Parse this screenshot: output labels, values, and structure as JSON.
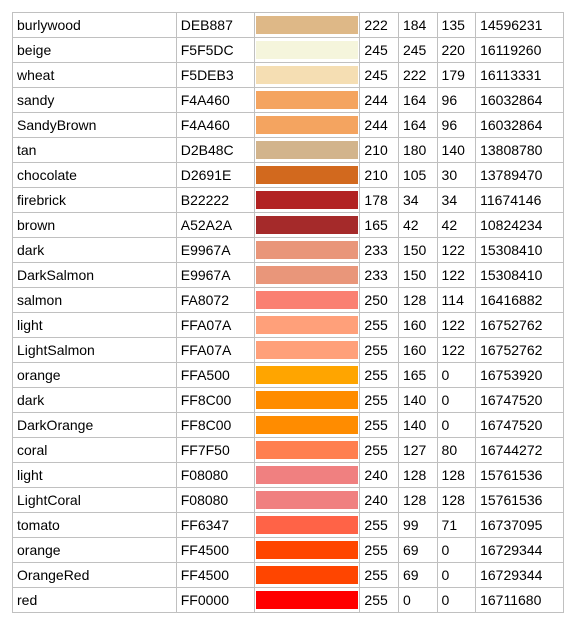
{
  "table": {
    "border_color": "#c0c0c0",
    "background_color": "#ffffff",
    "font_size": 14,
    "rows": [
      {
        "name": "burlywood",
        "hex": "DEB887",
        "color": "#DEB887",
        "r": 222,
        "g": 184,
        "b": 135,
        "dec": 14596231
      },
      {
        "name": "beige",
        "hex": "F5F5DC",
        "color": "#F5F5DC",
        "r": 245,
        "g": 245,
        "b": 220,
        "dec": 16119260
      },
      {
        "name": "wheat",
        "hex": "F5DEB3",
        "color": "#F5DEB3",
        "r": 245,
        "g": 222,
        "b": 179,
        "dec": 16113331
      },
      {
        "name": "sandy",
        "hex": "F4A460",
        "color": "#F4A460",
        "r": 244,
        "g": 164,
        "b": 96,
        "dec": 16032864
      },
      {
        "name": "SandyBrown",
        "hex": "F4A460",
        "color": "#F4A460",
        "r": 244,
        "g": 164,
        "b": 96,
        "dec": 16032864
      },
      {
        "name": "tan",
        "hex": "D2B48C",
        "color": "#D2B48C",
        "r": 210,
        "g": 180,
        "b": 140,
        "dec": 13808780
      },
      {
        "name": "chocolate",
        "hex": "D2691E",
        "color": "#D2691E",
        "r": 210,
        "g": 105,
        "b": 30,
        "dec": 13789470
      },
      {
        "name": "firebrick",
        "hex": "B22222",
        "color": "#B22222",
        "r": 178,
        "g": 34,
        "b": 34,
        "dec": 11674146
      },
      {
        "name": "brown",
        "hex": "A52A2A",
        "color": "#A52A2A",
        "r": 165,
        "g": 42,
        "b": 42,
        "dec": 10824234
      },
      {
        "name": "dark",
        "hex": "E9967A",
        "color": "#E9967A",
        "r": 233,
        "g": 150,
        "b": 122,
        "dec": 15308410
      },
      {
        "name": "DarkSalmon",
        "hex": "E9967A",
        "color": "#E9967A",
        "r": 233,
        "g": 150,
        "b": 122,
        "dec": 15308410
      },
      {
        "name": "salmon",
        "hex": "FA8072",
        "color": "#FA8072",
        "r": 250,
        "g": 128,
        "b": 114,
        "dec": 16416882
      },
      {
        "name": "light",
        "hex": "FFA07A",
        "color": "#FFA07A",
        "r": 255,
        "g": 160,
        "b": 122,
        "dec": 16752762
      },
      {
        "name": "LightSalmon",
        "hex": "FFA07A",
        "color": "#FFA07A",
        "r": 255,
        "g": 160,
        "b": 122,
        "dec": 16752762
      },
      {
        "name": "orange",
        "hex": "FFA500",
        "color": "#FFA500",
        "r": 255,
        "g": 165,
        "b": 0,
        "dec": 16753920
      },
      {
        "name": "dark",
        "hex": "FF8C00",
        "color": "#FF8C00",
        "r": 255,
        "g": 140,
        "b": 0,
        "dec": 16747520
      },
      {
        "name": "DarkOrange",
        "hex": "FF8C00",
        "color": "#FF8C00",
        "r": 255,
        "g": 140,
        "b": 0,
        "dec": 16747520
      },
      {
        "name": "coral",
        "hex": "FF7F50",
        "color": "#FF7F50",
        "r": 255,
        "g": 127,
        "b": 80,
        "dec": 16744272
      },
      {
        "name": "light",
        "hex": "F08080",
        "color": "#F08080",
        "r": 240,
        "g": 128,
        "b": 128,
        "dec": 15761536
      },
      {
        "name": "LightCoral",
        "hex": "F08080",
        "color": "#F08080",
        "r": 240,
        "g": 128,
        "b": 128,
        "dec": 15761536
      },
      {
        "name": "tomato",
        "hex": "FF6347",
        "color": "#FF6347",
        "r": 255,
        "g": 99,
        "b": 71,
        "dec": 16737095
      },
      {
        "name": "orange",
        "hex": "FF4500",
        "color": "#FF4500",
        "r": 255,
        "g": 69,
        "b": 0,
        "dec": 16729344
      },
      {
        "name": "OrangeRed",
        "hex": "FF4500",
        "color": "#FF4500",
        "r": 255,
        "g": 69,
        "b": 0,
        "dec": 16729344
      },
      {
        "name": "red",
        "hex": "FF0000",
        "color": "#FF0000",
        "r": 255,
        "g": 0,
        "b": 0,
        "dec": 16711680
      }
    ]
  }
}
